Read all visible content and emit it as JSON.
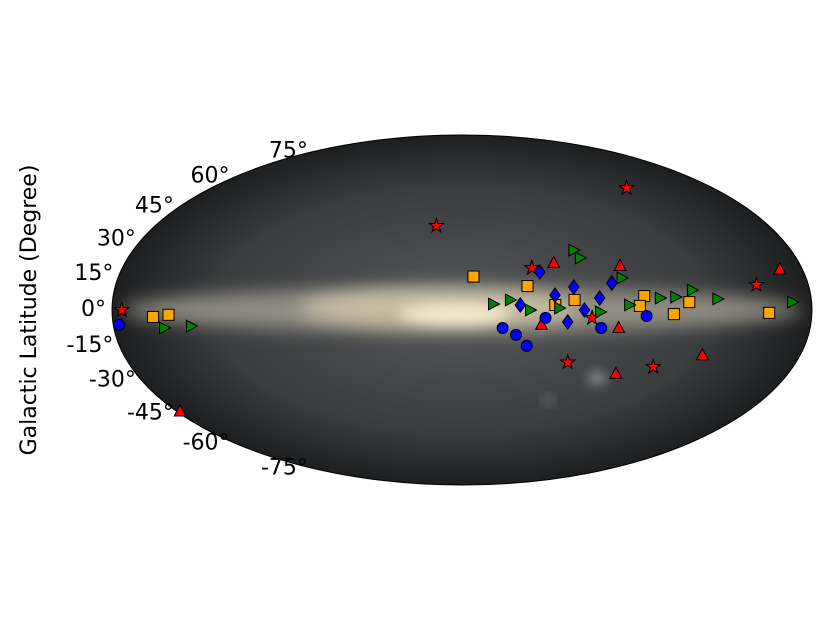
{
  "chart_data": {
    "type": "scatter",
    "projection": "mollweide",
    "ylabel": "Galactic Latitude (Degree)",
    "xlim": [
      -180,
      180
    ],
    "ylim": [
      -90,
      90
    ],
    "yticks": [
      {
        "value": -75,
        "label": "-75°"
      },
      {
        "value": -60,
        "label": "-60°"
      },
      {
        "value": -45,
        "label": "-45°"
      },
      {
        "value": -30,
        "label": "-30°"
      },
      {
        "value": -15,
        "label": "-15°"
      },
      {
        "value": 0,
        "label": "0°"
      },
      {
        "value": 15,
        "label": "15°"
      },
      {
        "value": 30,
        "label": "30°"
      },
      {
        "value": 45,
        "label": "45°"
      },
      {
        "value": 60,
        "label": "60°"
      },
      {
        "value": 75,
        "label": "75°"
      }
    ],
    "grid": false,
    "series": [
      {
        "marker": "star",
        "color": "#ff0000",
        "x": [
          -175,
          -15,
          118,
          57,
          104,
          153,
          37,
          67
        ],
        "values": [
          0,
          36,
          54,
          -22,
          -24,
          10.5,
          17.6,
          -3.3
        ]
      },
      {
        "marker": "triangle-up",
        "color": "#ff0000",
        "x": [
          49,
          84,
          168,
          128,
          85,
          -178,
          41,
          81
        ],
        "values": [
          19.8,
          18.5,
          17,
          -19,
          -27,
          -44,
          -6.2,
          -7.5
        ]
      },
      {
        "marker": "square",
        "color": "#ffa500",
        "x": [
          -159,
          -151,
          6,
          34,
          94,
          117,
          158,
          109,
          91.5,
          58,
          48
        ],
        "values": [
          -2.9,
          -2,
          14,
          10,
          5.8,
          3.3,
          -1.2,
          -1.7,
          1.7,
          4.2,
          2.1
        ]
      },
      {
        "marker": "circle",
        "color": "#0000ff",
        "x": [
          -177,
          21,
          28,
          34,
          72,
          95,
          43
        ],
        "values": [
          -6.2,
          -7.5,
          -10.4,
          -15,
          -7.5,
          -2.5,
          -3.3
        ]
      },
      {
        "marker": "diamond",
        "color": "#0000ff",
        "x": [
          41,
          58,
          78,
          48,
          71,
          54.5,
          63,
          30
        ],
        "values": [
          15.9,
          9.6,
          11.3,
          6.2,
          5,
          -5,
          0,
          2.1
        ]
      },
      {
        "marker": "triangle-right",
        "color": "#008000",
        "x": [
          -154,
          -140,
          61,
          63.5,
          83.5,
          119,
          131.6,
          170,
          16,
          24.7,
          35,
          50,
          71,
          86,
          102,
          110
        ],
        "values": [
          -7.5,
          -6.7,
          25.3,
          21.9,
          13.4,
          8.3,
          4.6,
          3.3,
          2.5,
          4.2,
          0,
          0.8,
          -0.8,
          2.1,
          5,
          5.4
        ]
      }
    ]
  }
}
